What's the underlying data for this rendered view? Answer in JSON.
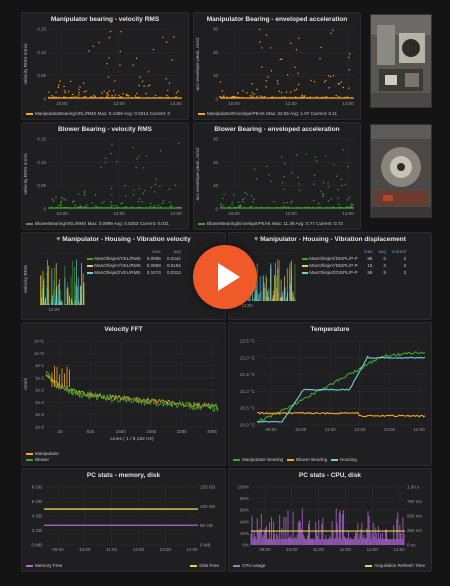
{
  "colors": {
    "orange": "#f5a623",
    "green": "#3fa52c",
    "blue": "#6ed0e0",
    "purple": "#b36ad9",
    "yellow": "#e8d04a",
    "grid": "#2e2e31"
  },
  "panels": {
    "mvrms": {
      "title": "Manipulator bearing - velocity RMS",
      "ylabel": "velocity RMS mm/s",
      "yticks": [
        "0.15",
        "0.10",
        "0.05",
        "0"
      ],
      "xticks": [
        "10:00",
        "12:00",
        "14:00"
      ],
      "legend": "ManipulatorBearing/VEL/RMS  Max: 0.1359  Avg: 0.0314  Current: 0"
    },
    "menv": {
      "title": "Manipulator Bearing - enveloped acceleration",
      "ylabel": "acc envelope peak, m/s2",
      "yticks": [
        "30",
        "20",
        "10",
        "0"
      ],
      "xticks": [
        "10:00",
        "12:00",
        "14:00"
      ],
      "legend": "Manipulator/Envelope/PEAK  Max: 23.55  Avg: 1.07  Current: 0.11"
    },
    "bvrms": {
      "title": "Blower Bearing - velocity RMS",
      "ylabel": "velocity RMS mm/s",
      "yticks": [
        "0.15",
        "0.10",
        "0.05",
        "0"
      ],
      "xticks": [
        "10:00",
        "12:00",
        "14:00"
      ],
      "legend": "BlowerBearing/VEL/RMS  Max: 0.0999  Avg: 0.0253  Current: 0.021"
    },
    "benv": {
      "title": "Blower Bearing - enveloped acceleration",
      "ylabel": "acc envelope peak, m/s2",
      "yticks": [
        "30",
        "20",
        "10",
        "0"
      ],
      "xticks": [
        "10:00",
        "12:00",
        "14:00"
      ],
      "legend": "BlowerBearing/Envelope/PEAK  Max: 11.39  Avg: 0.77  Current: 0.72"
    },
    "mhvel": {
      "title": "Manipulator - Housing - Vibration velocity",
      "ylabel": "velocity RMS",
      "xticks": [
        "12:00"
      ],
      "headers": [
        "max",
        "avg"
      ],
      "rows": [
        {
          "name": "ManOhisjeX/VEL/RMS",
          "max": "0.0966",
          "avg": "0.0242"
        },
        {
          "name": "ManOhisjeY/VEL/RMS",
          "max": "0.0959",
          "avg": "0.0194"
        },
        {
          "name": "ManOhisjeZ/VEL/RMS",
          "max": "0.1074",
          "avg": "0.0313"
        }
      ]
    },
    "mhdisp": {
      "title": "Manipulator - Housing - Vibration displacement",
      "xticks": [
        "12:00"
      ],
      "headers": [
        "max",
        "avg",
        "current"
      ],
      "rows": [
        {
          "name": "ManOhisjeX/DISPL/P-P",
          "max": "86",
          "avg": "6",
          "cur": "2"
        },
        {
          "name": "ManOhisjeY/DISPL/P-P",
          "max": "15",
          "avg": "3",
          "cur": "2"
        },
        {
          "name": "ManOhisjeZ/DISPL/P-P",
          "max": "59",
          "avg": "9",
          "cur": "3"
        }
      ]
    },
    "fft": {
      "title": "Velocity FFT",
      "ylabel": "mm/s",
      "yticks": [
        "1e+1",
        "1e+0",
        "1e-1",
        "1e-2",
        "1e-3",
        "1e-4",
        "1e-5",
        "1e-6"
      ],
      "xticks": [
        "20",
        "835",
        "1650",
        "2465",
        "3280",
        "4095"
      ],
      "xlabel": "Lines ( 1 / 8,192 Hz)",
      "legend": [
        "Manipulator",
        "Blower"
      ]
    },
    "temp": {
      "title": "Temperature",
      "yticks": [
        "22.5 °C",
        "22.0 °C",
        "21.5 °C",
        "21.0 °C",
        "20.5 °C",
        "20.0 °C"
      ],
      "xticks": [
        "09:00",
        "10:00",
        "11:00",
        "12:00",
        "13:00",
        "14:00"
      ],
      "legend": [
        "Manipulator Bearing",
        "Blower Bearing",
        "Housing"
      ]
    },
    "pcmem": {
      "title": "PC stats - memory, disk",
      "yticks_left": [
        "8 GB",
        "6 GB",
        "4 GB",
        "2 GB",
        "0 MB"
      ],
      "yticks_right": [
        "150 GB",
        "100 GB",
        "50 GB",
        "0 MB"
      ],
      "xticks": [
        "09:00",
        "10:00",
        "11:00",
        "12:00",
        "13:00",
        "14:00"
      ],
      "legend": [
        "Memory Free",
        "Disk Free"
      ]
    },
    "pccpu": {
      "title": "PC stats - CPU, disk",
      "yticks_left": [
        "100%",
        "80%",
        "60%",
        "40%",
        "20%",
        "0%"
      ],
      "yticks_right": [
        "1.00 s",
        "750 ms",
        "500 ms",
        "250 ms",
        "0 ns"
      ],
      "xticks": [
        "09:00",
        "10:00",
        "11:00",
        "12:00",
        "13:00",
        "14:00"
      ],
      "legend": [
        "CPU usage",
        "Acquisition Refresh Time"
      ]
    }
  }
}
